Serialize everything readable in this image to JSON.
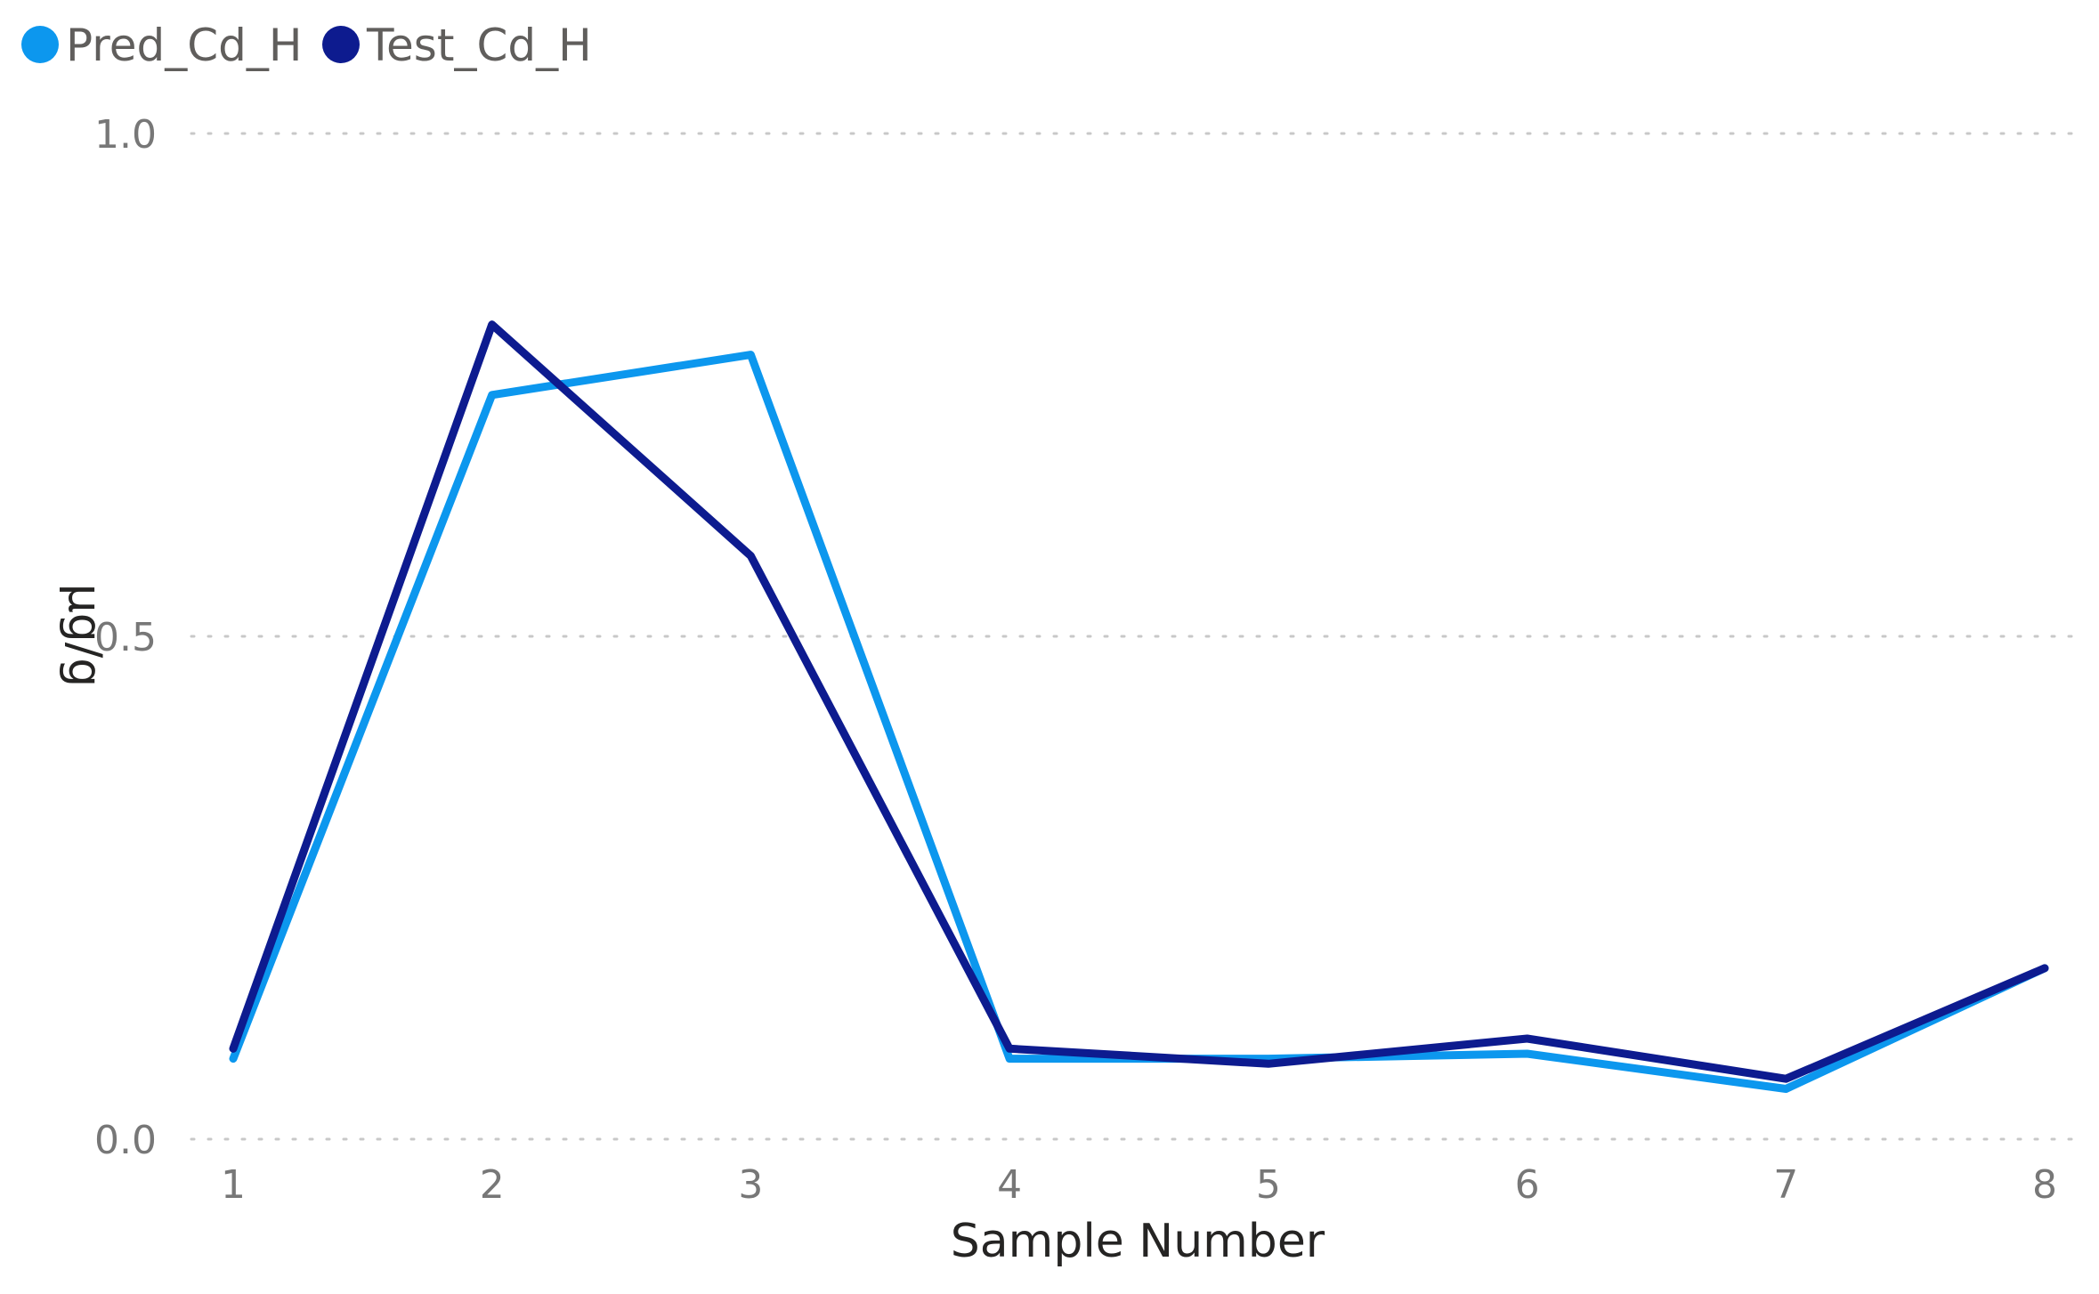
{
  "chart_data": {
    "type": "line",
    "title": "",
    "xlabel": "Sample Number",
    "ylabel": "µg/g",
    "categories": [
      "1",
      "2",
      "3",
      "4",
      "5",
      "6",
      "7",
      "8"
    ],
    "y_ticks": [
      "0.0",
      "0.5",
      "1.0"
    ],
    "ylim": [
      0,
      1.0
    ],
    "grid": "horizontal dotted",
    "legend_position": "top-left",
    "series": [
      {
        "name": "Pred_Cd_H",
        "color": "#0c97ee",
        "values": [
          0.08,
          0.74,
          0.78,
          0.08,
          0.08,
          0.085,
          0.05,
          0.17
        ]
      },
      {
        "name": "Test_Cd_H",
        "color": "#0d1b8f",
        "values": [
          0.09,
          0.81,
          0.58,
          0.09,
          0.075,
          0.1,
          0.06,
          0.17
        ]
      }
    ]
  }
}
